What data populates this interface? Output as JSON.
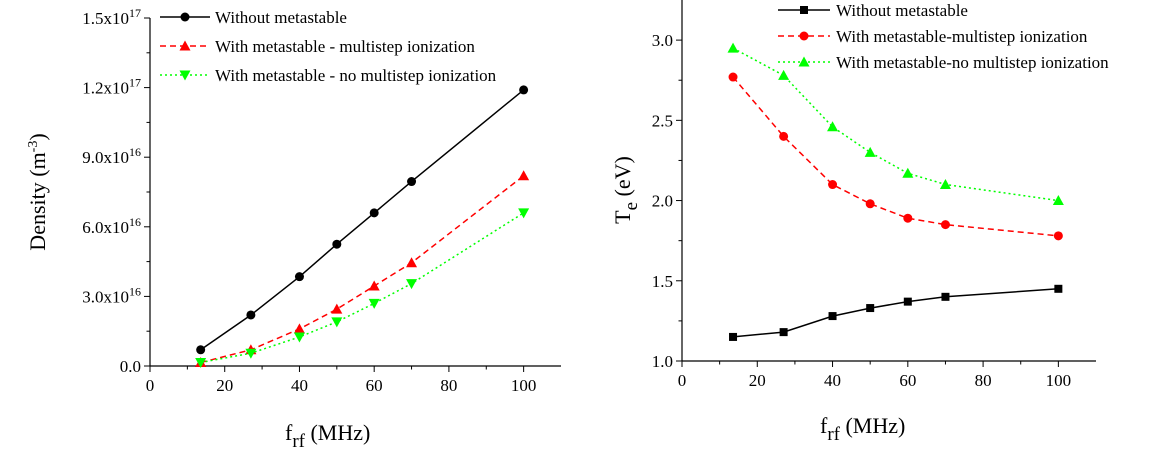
{
  "chart_data": [
    {
      "type": "line",
      "xlabel": {
        "main": "f",
        "sub": "rf",
        "unit": " (MHz)"
      },
      "ylabel": {
        "main": "Density (m",
        "sup": "-3",
        "close": ")"
      },
      "xlim": [
        0,
        110
      ],
      "ylim": [
        0,
        1.5e+17
      ],
      "x_ticks": [
        0,
        20,
        40,
        60,
        80,
        100
      ],
      "y_ticks": [
        {
          "value": 0,
          "mant": "0.0",
          "exp": ""
        },
        {
          "value": 3e+16,
          "mant": "3.0x10",
          "exp": "16"
        },
        {
          "value": 6e+16,
          "mant": "6.0x10",
          "exp": "16"
        },
        {
          "value": 9e+16,
          "mant": "9.0x10",
          "exp": "16"
        },
        {
          "value": 1.2e+17,
          "mant": "1.2x10",
          "exp": "17"
        },
        {
          "value": 1.5e+17,
          "mant": "1.5x10",
          "exp": "17"
        }
      ],
      "legend_position": "top-left",
      "series": [
        {
          "name": "Without metastable",
          "color": "#000000",
          "marker": "circle",
          "dash": "solid",
          "x": [
            13.56,
            27,
            40,
            50,
            60,
            70,
            100
          ],
          "y": [
            7000000000000000.0,
            2.2e+16,
            3.85e+16,
            5.25e+16,
            6.6e+16,
            7.95e+16,
            1.19e+17
          ]
        },
        {
          "name": "With metastable - multistep ionization",
          "color": "#ff0000",
          "marker": "triangle-up",
          "dash": "dashed",
          "x": [
            13.56,
            27,
            40,
            50,
            60,
            70,
            100
          ],
          "y": [
            1500000000000000.0,
            7000000000000000.0,
            1.6e+16,
            2.45e+16,
            3.45e+16,
            4.45e+16,
            8.2e+16
          ]
        },
        {
          "name": "With metastable - no multistep ionization",
          "color": "#00ff00",
          "marker": "triangle-down",
          "dash": "dotted",
          "x": [
            13.56,
            27,
            40,
            50,
            60,
            70,
            100
          ],
          "y": [
            1500000000000000.0,
            5500000000000000.0,
            1.25e+16,
            1.9e+16,
            2.7e+16,
            3.55e+16,
            6.6e+16
          ]
        }
      ]
    },
    {
      "type": "line",
      "xlabel": {
        "main": "f",
        "sub": "rf",
        "unit": " (MHz)"
      },
      "ylabel": {
        "main": "T",
        "sub": "e",
        "unit": " (eV)"
      },
      "xlim": [
        0,
        110
      ],
      "ylim": [
        1.0,
        3.25
      ],
      "x_ticks": [
        0,
        20,
        40,
        60,
        80,
        100
      ],
      "y_ticks": [
        {
          "value": 1.0,
          "mant": "1.0",
          "exp": ""
        },
        {
          "value": 1.5,
          "mant": "1.5",
          "exp": ""
        },
        {
          "value": 2.0,
          "mant": "2.0",
          "exp": ""
        },
        {
          "value": 2.5,
          "mant": "2.5",
          "exp": ""
        },
        {
          "value": 3.0,
          "mant": "3.0",
          "exp": ""
        }
      ],
      "legend_position": "top-right",
      "series": [
        {
          "name": "Without metastable",
          "color": "#000000",
          "marker": "square",
          "dash": "solid",
          "x": [
            13.56,
            27,
            40,
            50,
            60,
            70,
            100
          ],
          "y": [
            1.15,
            1.18,
            1.28,
            1.33,
            1.37,
            1.4,
            1.45
          ]
        },
        {
          "name": "With metastable-multistep ionization",
          "color": "#ff0000",
          "marker": "circle",
          "dash": "dashed",
          "x": [
            13.56,
            27,
            40,
            50,
            60,
            70,
            100
          ],
          "y": [
            2.77,
            2.4,
            2.1,
            1.98,
            1.89,
            1.85,
            1.78
          ]
        },
        {
          "name": "With metastable-no multistep ionization",
          "color": "#00ff00",
          "marker": "triangle-up",
          "dash": "dotted",
          "x": [
            13.56,
            27,
            40,
            50,
            60,
            70,
            100
          ],
          "y": [
            2.95,
            2.78,
            2.46,
            2.3,
            2.17,
            2.1,
            2.0
          ]
        }
      ]
    }
  ]
}
